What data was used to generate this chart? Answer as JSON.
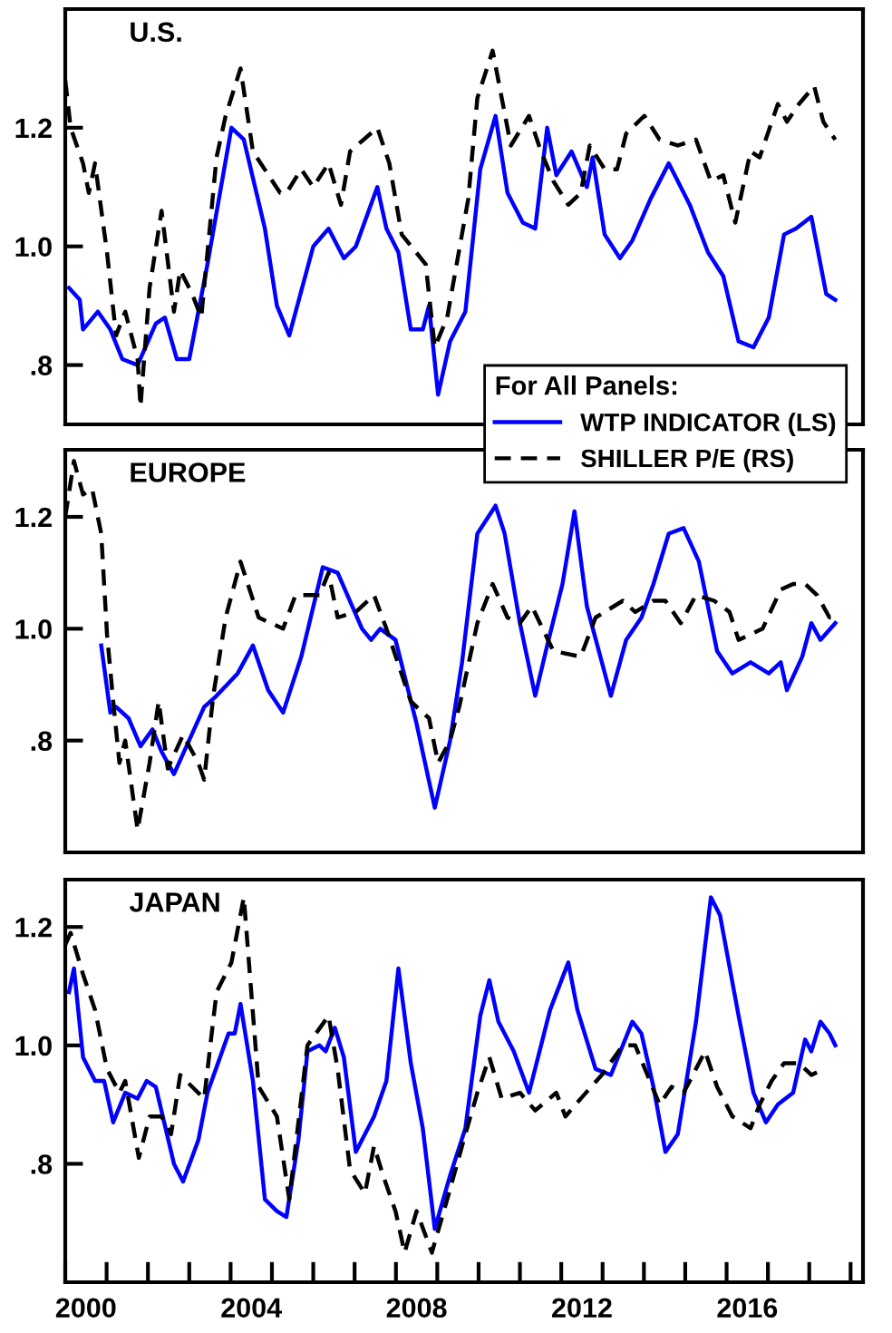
{
  "chart_data": [
    {
      "type": "line",
      "title": "U.S.",
      "legend_title": "For All Panels:",
      "legend": "bottom right",
      "tick_labels": "y",
      "grid": false,
      "marker": "none",
      "xlim": [
        2000,
        2019.3
      ],
      "ylim": [
        0.7,
        1.4
      ],
      "yticks": [
        {
          "value": 0.8,
          "label": ".8"
        },
        {
          "value": 1.0,
          "label": "1.0"
        },
        {
          "value": 1.2,
          "label": "1.2"
        }
      ],
      "series": [
        {
          "name": "WTP INDICATOR (LS)",
          "color": "#0000ff",
          "line_style": "solid",
          "x": [
            2000.09,
            2000.35,
            2000.43,
            2000.79,
            2001.09,
            2001.38,
            2001.75,
            2002.19,
            2002.41,
            2002.7,
            2003.0,
            2003.44,
            2004.02,
            2004.32,
            2004.83,
            2005.12,
            2005.42,
            2006.0,
            2006.37,
            2006.74,
            2007.03,
            2007.55,
            2007.77,
            2008.06,
            2008.36,
            2008.65,
            2008.8,
            2009.02,
            2009.31,
            2009.68,
            2010.04,
            2010.41,
            2010.7,
            2011.07,
            2011.37,
            2011.66,
            2011.88,
            2012.25,
            2012.62,
            2012.76,
            2013.05,
            2013.42,
            2013.72,
            2014.16,
            2014.6,
            2015.11,
            2015.55,
            2015.92,
            2016.29,
            2016.65,
            2017.02,
            2017.39,
            2017.68,
            2018.05,
            2018.41,
            2018.63
          ],
          "values": [
            0.93,
            0.91,
            0.86,
            0.89,
            0.86,
            0.81,
            0.8,
            0.87,
            0.88,
            0.81,
            0.81,
            0.97,
            1.2,
            1.18,
            1.03,
            0.9,
            0.85,
            1.0,
            1.03,
            0.98,
            1.0,
            1.1,
            1.03,
            0.99,
            0.86,
            0.86,
            0.9,
            0.75,
            0.84,
            0.89,
            1.13,
            1.22,
            1.09,
            1.04,
            1.03,
            1.2,
            1.12,
            1.16,
            1.1,
            1.15,
            1.02,
            0.98,
            1.01,
            1.08,
            1.14,
            1.07,
            0.99,
            0.95,
            0.84,
            0.83,
            0.88,
            1.02,
            1.03,
            1.05,
            0.92,
            0.91
          ]
        },
        {
          "name": "SHILLER P/E (RS)",
          "color": "#000000",
          "line_style": "dashed",
          "x": [
            2000.0,
            2000.13,
            2000.43,
            2000.57,
            2000.72,
            2001.01,
            2001.23,
            2001.45,
            2001.75,
            2001.82,
            2002.04,
            2002.33,
            2002.63,
            2002.78,
            2003.07,
            2003.29,
            2003.66,
            2003.88,
            2004.24,
            2004.54,
            2005.2,
            2005.35,
            2005.71,
            2006.0,
            2006.37,
            2006.67,
            2006.89,
            2007.55,
            2007.84,
            2008.14,
            2008.72,
            2008.94,
            2009.24,
            2009.75,
            2009.97,
            2010.34,
            2010.78,
            2011.22,
            2011.51,
            2011.81,
            2012.17,
            2012.47,
            2012.69,
            2013.05,
            2013.35,
            2013.57,
            2014.01,
            2014.38,
            2014.82,
            2015.26,
            2015.62,
            2015.92,
            2016.21,
            2016.58,
            2016.8,
            2017.24,
            2017.46,
            2017.75,
            2018.12,
            2018.34,
            2018.63
          ],
          "values": [
            1.28,
            1.2,
            1.14,
            1.09,
            1.14,
            0.99,
            0.85,
            0.89,
            0.81,
            0.73,
            0.93,
            1.06,
            0.89,
            0.96,
            0.92,
            0.88,
            1.15,
            1.22,
            1.3,
            1.16,
            1.09,
            1.09,
            1.13,
            1.1,
            1.14,
            1.07,
            1.16,
            1.2,
            1.14,
            1.02,
            0.97,
            0.83,
            0.88,
            1.08,
            1.25,
            1.33,
            1.17,
            1.22,
            1.16,
            1.11,
            1.07,
            1.09,
            1.17,
            1.13,
            1.13,
            1.19,
            1.22,
            1.18,
            1.17,
            1.18,
            1.11,
            1.12,
            1.04,
            1.16,
            1.15,
            1.24,
            1.21,
            1.24,
            1.27,
            1.21,
            1.18
          ]
        }
      ]
    },
    {
      "type": "line",
      "title": "EUROPE",
      "legend": false,
      "tick_labels": "y",
      "grid": false,
      "marker": "none",
      "xlim": [
        2000,
        2019.3
      ],
      "ylim": [
        0.6,
        1.32
      ],
      "yticks": [
        {
          "value": 0.8,
          "label": ".8"
        },
        {
          "value": 1.0,
          "label": "1.0"
        },
        {
          "value": 1.2,
          "label": "1.2"
        }
      ],
      "series": [
        {
          "color": "#0000ff",
          "line_style": "solid",
          "x": [
            2000.87,
            2001.09,
            2001.23,
            2001.53,
            2001.82,
            2002.11,
            2002.33,
            2002.63,
            2003.36,
            2003.66,
            2004.17,
            2004.54,
            2004.91,
            2005.27,
            2005.71,
            2006.23,
            2006.59,
            2007.18,
            2007.4,
            2007.62,
            2007.99,
            2008.5,
            2008.94,
            2009.31,
            2009.6,
            2009.97,
            2010.41,
            2010.63,
            2011.0,
            2011.37,
            2011.66,
            2012.03,
            2012.32,
            2012.62,
            2013.2,
            2013.57,
            2013.94,
            2014.23,
            2014.6,
            2014.96,
            2015.33,
            2015.77,
            2016.14,
            2016.58,
            2017.02,
            2017.31,
            2017.46,
            2017.83,
            2018.05,
            2018.27,
            2018.63
          ],
          "values": [
            0.97,
            0.85,
            0.86,
            0.84,
            0.79,
            0.82,
            0.78,
            0.74,
            0.86,
            0.88,
            0.92,
            0.97,
            0.89,
            0.85,
            0.95,
            1.11,
            1.1,
            1.0,
            0.98,
            1.0,
            0.98,
            0.83,
            0.68,
            0.8,
            0.94,
            1.17,
            1.22,
            1.17,
            1.01,
            0.88,
            0.97,
            1.08,
            1.21,
            1.04,
            0.88,
            0.98,
            1.02,
            1.08,
            1.17,
            1.18,
            1.12,
            0.96,
            0.92,
            0.94,
            0.92,
            0.94,
            0.89,
            0.95,
            1.01,
            0.98,
            1.01
          ]
        },
        {
          "color": "#000000",
          "line_style": "dashed",
          "x": [
            2000.0,
            2000.21,
            2000.43,
            2000.65,
            2000.87,
            2001.01,
            2001.16,
            2001.31,
            2001.45,
            2001.75,
            2002.04,
            2002.26,
            2002.48,
            2002.85,
            2003.22,
            2003.36,
            2003.58,
            2003.88,
            2004.24,
            2004.68,
            2005.27,
            2005.57,
            2006.15,
            2006.37,
            2006.59,
            2007.03,
            2007.47,
            2007.77,
            2008.36,
            2008.8,
            2009.02,
            2009.31,
            2009.53,
            2009.97,
            2010.34,
            2010.7,
            2011.0,
            2011.29,
            2011.81,
            2012.47,
            2012.83,
            2013.49,
            2013.79,
            2014.23,
            2014.52,
            2014.89,
            2015.26,
            2015.7,
            2016.07,
            2016.29,
            2016.58,
            2016.87,
            2017.31,
            2017.61,
            2017.9,
            2018.19,
            2018.49,
            2018.63
          ],
          "values": [
            1.2,
            1.3,
            1.24,
            1.25,
            1.17,
            0.99,
            0.87,
            0.76,
            0.8,
            0.64,
            0.76,
            0.87,
            0.75,
            0.81,
            0.76,
            0.73,
            0.88,
            1.02,
            1.12,
            1.02,
            1.0,
            1.06,
            1.06,
            1.1,
            1.02,
            1.03,
            1.06,
            1.0,
            0.87,
            0.84,
            0.76,
            0.8,
            0.86,
            1.01,
            1.08,
            1.02,
            1.01,
            1.04,
            0.96,
            0.95,
            1.02,
            1.05,
            1.03,
            1.05,
            1.05,
            1.01,
            1.06,
            1.05,
            1.03,
            0.98,
            0.99,
            1.0,
            1.07,
            1.08,
            1.08,
            1.06,
            1.02,
            1.02
          ]
        }
      ]
    },
    {
      "type": "line",
      "title": "JAPAN",
      "legend": false,
      "tick_labels": [
        "x",
        "y"
      ],
      "grid": false,
      "marker": "none",
      "xlim": [
        2000,
        2019.3
      ],
      "xticks": [
        {
          "value": 2000.5,
          "label": "2000"
        },
        {
          "value": 2004.5,
          "label": "2004"
        },
        {
          "value": 2008.5,
          "label": "2008"
        },
        {
          "value": 2012.5,
          "label": "2012"
        },
        {
          "value": 2016.5,
          "label": "2016"
        },
        {
          "value": 2000,
          "label": null
        },
        {
          "value": 2001,
          "label": null
        },
        {
          "value": 2002,
          "label": null
        },
        {
          "value": 2003,
          "label": null
        },
        {
          "value": 2004,
          "label": null
        },
        {
          "value": 2005,
          "label": null
        },
        {
          "value": 2006,
          "label": null
        },
        {
          "value": 2007,
          "label": null
        },
        {
          "value": 2008,
          "label": null
        },
        {
          "value": 2009,
          "label": null
        },
        {
          "value": 2010,
          "label": null
        },
        {
          "value": 2011,
          "label": null
        },
        {
          "value": 2012,
          "label": null
        },
        {
          "value": 2013,
          "label": null
        },
        {
          "value": 2014,
          "label": null
        },
        {
          "value": 2015,
          "label": null
        },
        {
          "value": 2016,
          "label": null
        },
        {
          "value": 2017,
          "label": null
        },
        {
          "value": 2018,
          "label": null
        },
        {
          "value": 2019,
          "label": null
        }
      ],
      "ylim": [
        0.6,
        1.28
      ],
      "yticks": [
        {
          "value": 0.8,
          "label": ".8"
        },
        {
          "value": 1.0,
          "label": "1.0"
        },
        {
          "value": 1.2,
          "label": "1.2"
        }
      ],
      "series": [
        {
          "color": "#0000ff",
          "line_style": "solid",
          "x": [
            2000.09,
            2000.21,
            2000.43,
            2000.72,
            2000.94,
            2001.16,
            2001.45,
            2001.75,
            2001.97,
            2002.19,
            2002.63,
            2002.85,
            2003.22,
            2003.44,
            2003.95,
            2004.1,
            2004.24,
            2004.54,
            2004.83,
            2005.12,
            2005.35,
            2005.64,
            2005.86,
            2006.15,
            2006.3,
            2006.52,
            2006.74,
            2007.03,
            2007.47,
            2007.77,
            2008.06,
            2008.36,
            2008.65,
            2008.94,
            2009.31,
            2009.68,
            2010.04,
            2010.26,
            2010.48,
            2010.85,
            2011.22,
            2011.73,
            2012.17,
            2012.39,
            2012.83,
            2013.2,
            2013.72,
            2013.94,
            2014.23,
            2014.52,
            2014.82,
            2015.26,
            2015.62,
            2015.84,
            2016.29,
            2016.65,
            2016.95,
            2017.24,
            2017.61,
            2017.9,
            2018.05,
            2018.27,
            2018.49,
            2018.63
          ],
          "values": [
            1.09,
            1.13,
            0.98,
            0.94,
            0.94,
            0.87,
            0.92,
            0.91,
            0.94,
            0.93,
            0.8,
            0.77,
            0.84,
            0.92,
            1.02,
            1.02,
            1.07,
            0.94,
            0.74,
            0.72,
            0.71,
            0.84,
            0.99,
            1.0,
            0.99,
            1.03,
            0.98,
            0.82,
            0.88,
            0.94,
            1.13,
            0.97,
            0.86,
            0.69,
            0.78,
            0.86,
            1.05,
            1.11,
            1.04,
            0.99,
            0.92,
            1.06,
            1.14,
            1.06,
            0.96,
            0.95,
            1.04,
            1.02,
            0.93,
            0.82,
            0.85,
            1.04,
            1.25,
            1.22,
            1.05,
            0.92,
            0.87,
            0.9,
            0.92,
            1.01,
            0.99,
            1.04,
            1.02,
            1.0
          ]
        },
        {
          "color": "#000000",
          "line_style": "dashed",
          "x": [
            2000.0,
            2000.13,
            2000.43,
            2000.72,
            2001.01,
            2001.31,
            2001.45,
            2001.78,
            2002.04,
            2002.33,
            2002.56,
            2002.78,
            2003.07,
            2003.36,
            2003.66,
            2004.02,
            2004.32,
            2004.68,
            2005.12,
            2005.42,
            2005.86,
            2006.37,
            2006.59,
            2006.89,
            2007.25,
            2007.47,
            2007.69,
            2007.99,
            2008.21,
            2008.5,
            2008.87,
            2009.24,
            2009.68,
            2009.97,
            2010.26,
            2010.56,
            2011.0,
            2011.37,
            2011.88,
            2012.1,
            2012.47,
            2012.98,
            2013.49,
            2013.79,
            2014.38,
            2014.67,
            2014.96,
            2015.48,
            2015.77,
            2016.14,
            2016.58,
            2016.8,
            2017.09,
            2017.39,
            2017.75,
            2018.05,
            2018.34
          ],
          "values": [
            1.17,
            1.19,
            1.12,
            1.06,
            0.96,
            0.92,
            0.94,
            0.81,
            0.88,
            0.88,
            0.85,
            0.95,
            0.93,
            0.91,
            1.09,
            1.14,
            1.25,
            0.93,
            0.88,
            0.74,
            1.0,
            1.05,
            0.96,
            0.79,
            0.75,
            0.83,
            0.78,
            0.72,
            0.65,
            0.72,
            0.65,
            0.74,
            0.85,
            0.92,
            0.98,
            0.91,
            0.92,
            0.89,
            0.92,
            0.88,
            0.91,
            0.95,
            1.0,
            1.0,
            0.9,
            0.93,
            0.92,
            0.99,
            0.93,
            0.88,
            0.86,
            0.9,
            0.94,
            0.97,
            0.97,
            0.95,
            0.96
          ]
        }
      ]
    }
  ]
}
